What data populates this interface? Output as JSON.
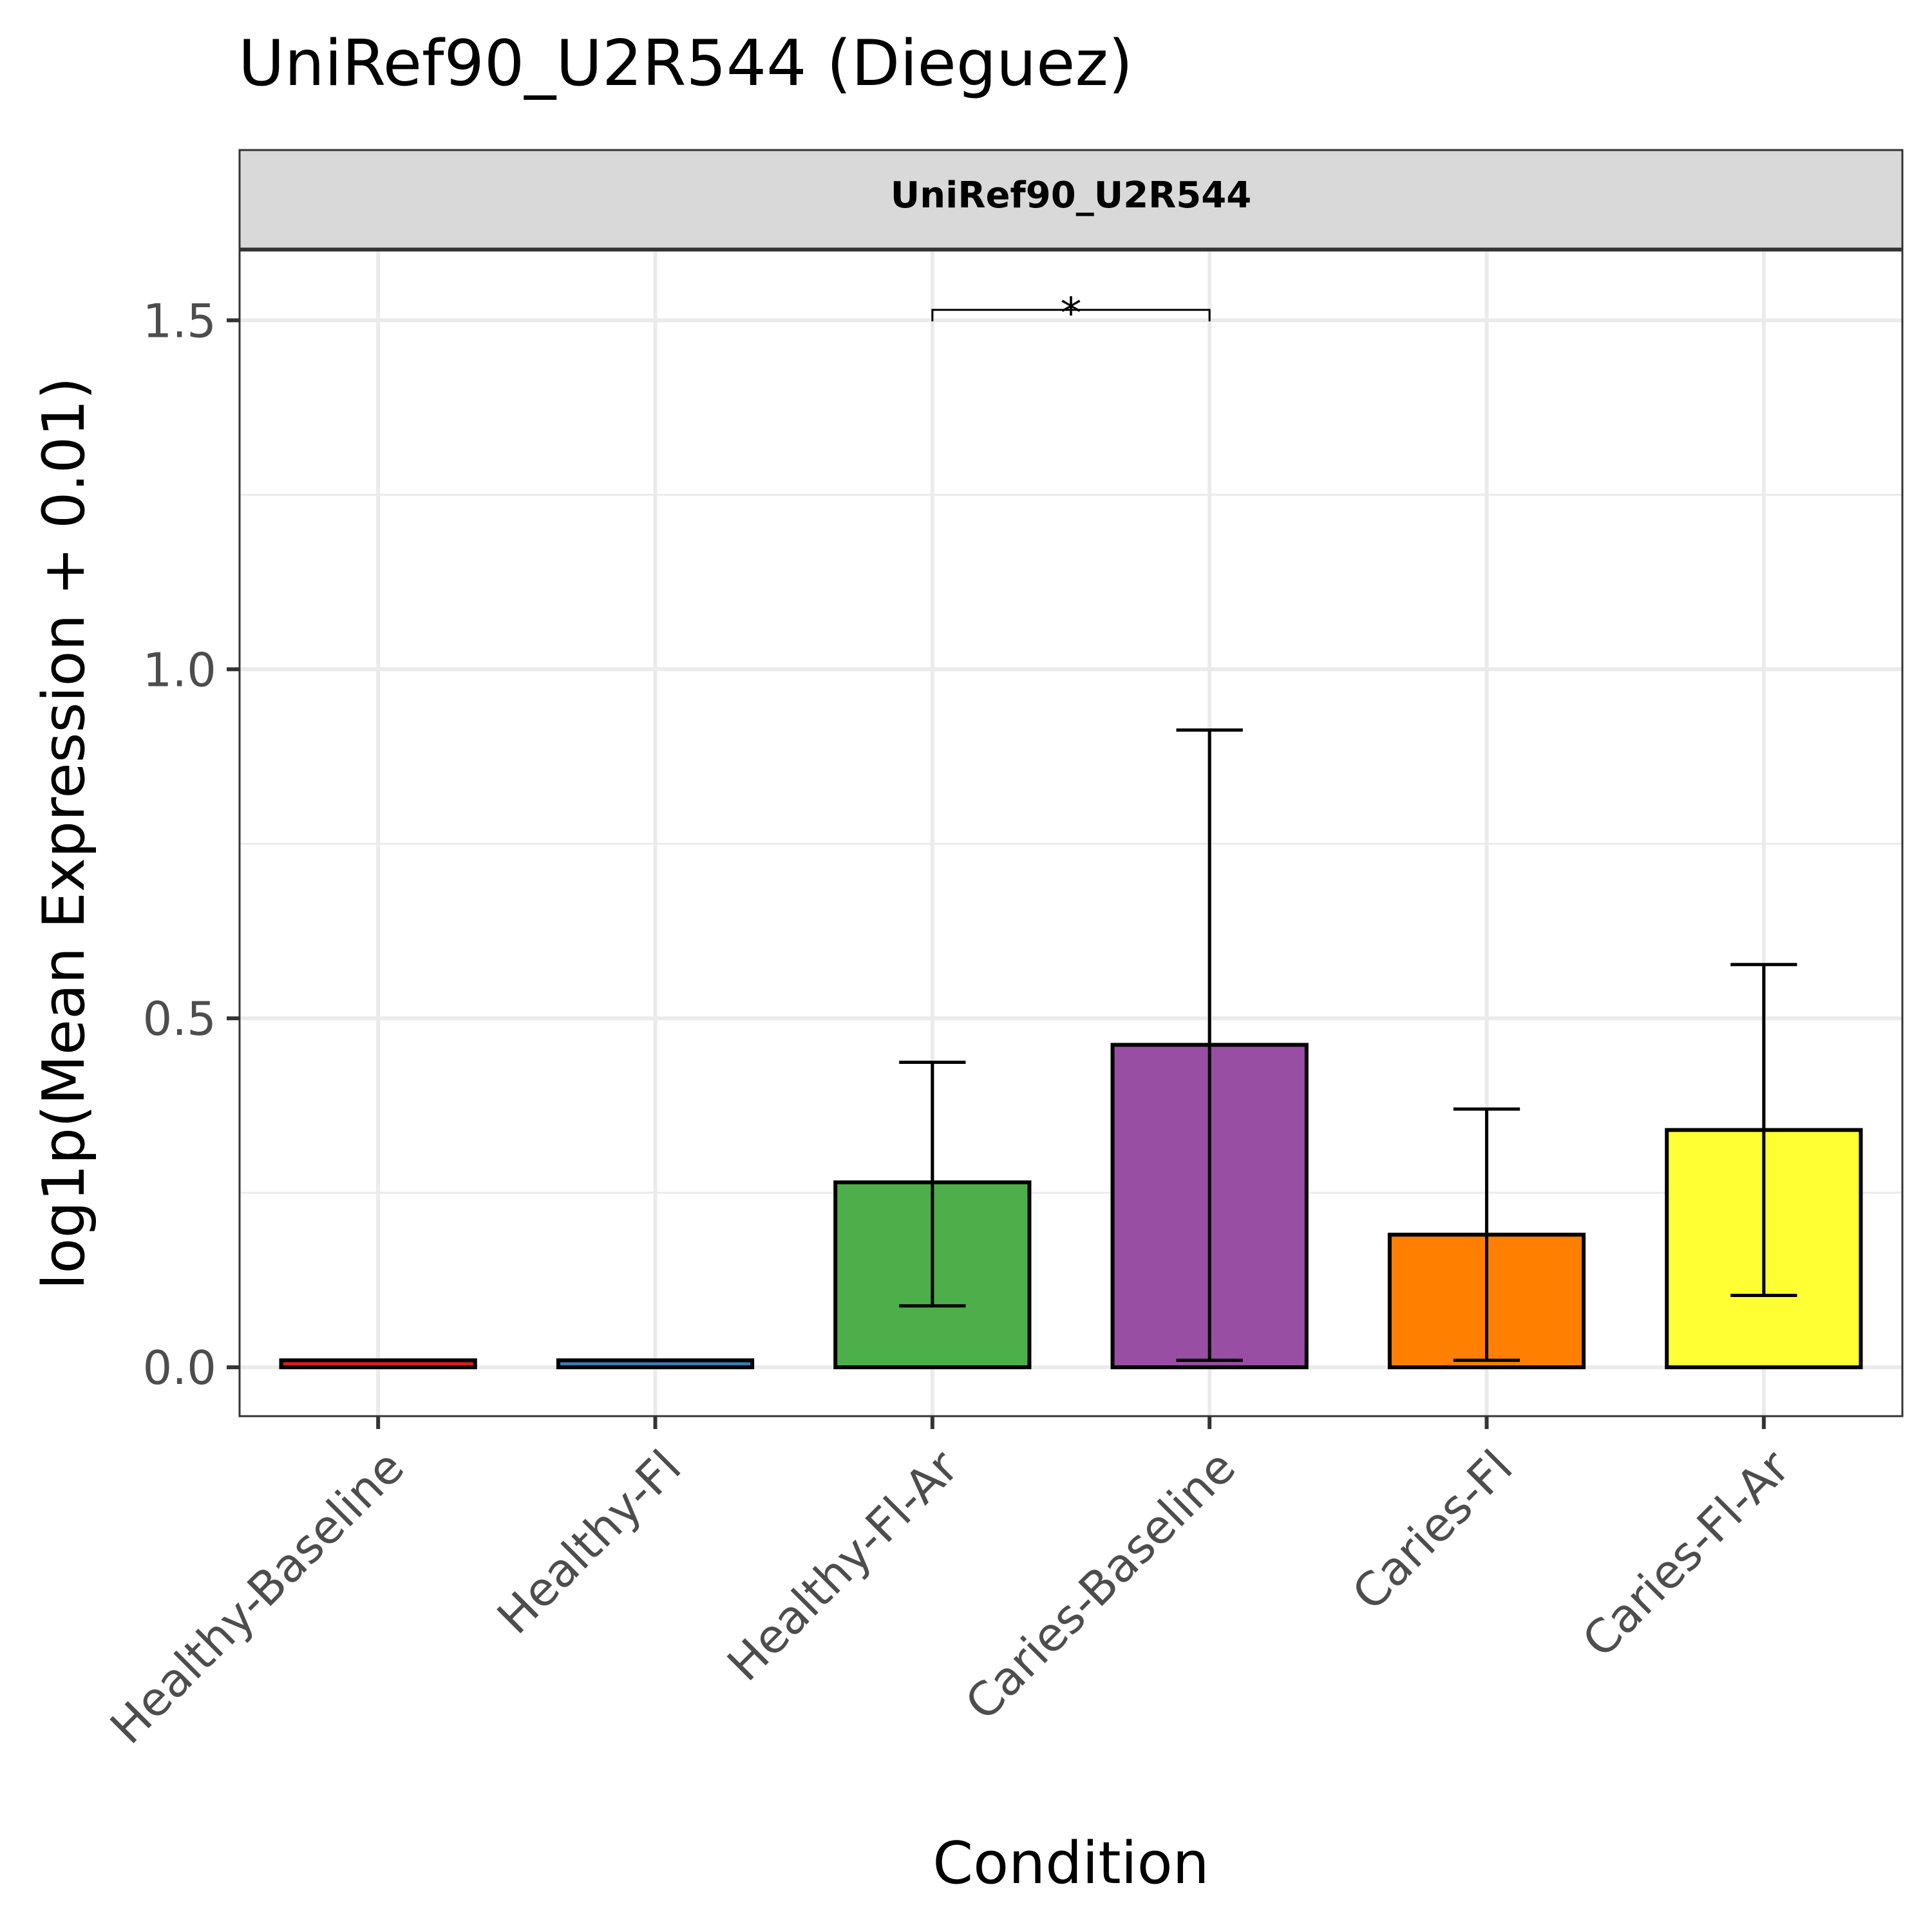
{
  "chart_data": {
    "type": "bar",
    "title": "UniRef90_U2R544 (Dieguez)",
    "facet_label": "UniRef90_U2R544",
    "facet_label_color": "#228B22",
    "xlabel": "Condition",
    "ylabel": "log1p(Mean Expression + 0.01)",
    "ylim": [
      -0.07,
      1.6
    ],
    "yticks": [
      0.0,
      0.5,
      1.0,
      1.5
    ],
    "ytick_labels": [
      "0.0",
      "0.5",
      "1.0",
      "1.5"
    ],
    "grid": true,
    "categories": [
      "Healthy-Baseline",
      "Healthy-Fl",
      "Healthy-Fl-Ar",
      "Caries-Baseline",
      "Caries-Fl",
      "Caries-Fl-Ar"
    ],
    "values": [
      0.01,
      0.01,
      0.265,
      0.462,
      0.19,
      0.34
    ],
    "error_low": [
      0.01,
      0.01,
      0.088,
      0.01,
      0.01,
      0.103
    ],
    "error_high": [
      0.01,
      0.01,
      0.437,
      0.913,
      0.37,
      0.577
    ],
    "colors": [
      "#E41A1C",
      "#377EB8",
      "#4DAF4A",
      "#984EA3",
      "#FF7F00",
      "#FFFF33"
    ],
    "significance": [
      {
        "from": "Healthy-Fl-Ar",
        "to": "Caries-Baseline",
        "label": "*",
        "y": 1.515
      }
    ]
  }
}
